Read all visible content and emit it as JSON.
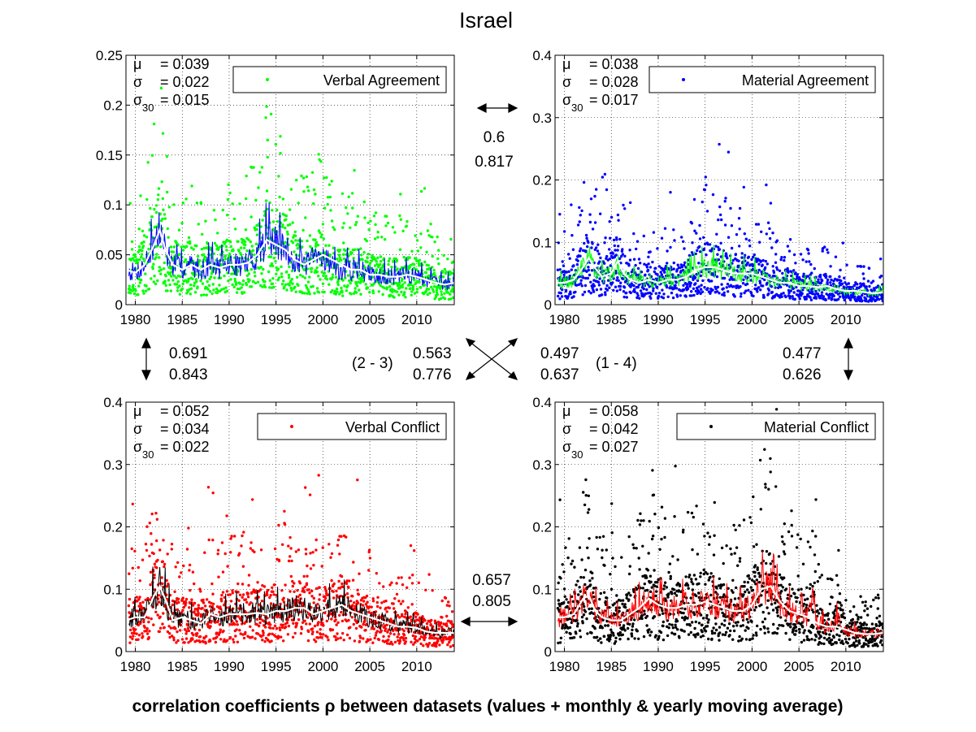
{
  "figure": {
    "title": "Israel",
    "caption": "correlation coefficients ρ between datasets (values + monthly & yearly moving average)"
  },
  "chart_data": [
    {
      "type": "scatter",
      "legend": "Verbal Agreement",
      "legend_position": "top-right",
      "point_color": "#00ff00",
      "monthly_color": "#0000ff",
      "yearly_color": "#ffffff",
      "grid": true,
      "xlim": [
        1979,
        2014
      ],
      "ylim": [
        0,
        0.25
      ],
      "xticks": [
        "1980",
        "1985",
        "1990",
        "1995",
        "2000",
        "2005",
        "2010"
      ],
      "yticks": [
        "0",
        "0.05",
        "0.1",
        "0.15",
        "0.2",
        "0.25"
      ],
      "stats": [
        {
          "sym": "μ",
          "sub": "",
          "val": "= 0.039"
        },
        {
          "sym": "σ",
          "sub": "",
          "val": "= 0.022"
        },
        {
          "sym": "σ",
          "sub": "30",
          "val": "= 0.015"
        }
      ],
      "yearly_avg": [
        [
          1979,
          0.035
        ],
        [
          1980,
          0.032
        ],
        [
          1981,
          0.04
        ],
        [
          1982,
          0.06
        ],
        [
          1982.6,
          0.075
        ],
        [
          1983.2,
          0.055
        ],
        [
          1984,
          0.04
        ],
        [
          1985,
          0.035
        ],
        [
          1986,
          0.04
        ],
        [
          1987,
          0.035
        ],
        [
          1988,
          0.04
        ],
        [
          1989,
          0.037
        ],
        [
          1990,
          0.04
        ],
        [
          1991,
          0.04
        ],
        [
          1992,
          0.042
        ],
        [
          1993,
          0.05
        ],
        [
          1994,
          0.065
        ],
        [
          1995,
          0.06
        ],
        [
          1996,
          0.055
        ],
        [
          1997,
          0.045
        ],
        [
          1998,
          0.04
        ],
        [
          1999,
          0.045
        ],
        [
          2000,
          0.05
        ],
        [
          2001,
          0.045
        ],
        [
          2002,
          0.04
        ],
        [
          2003,
          0.035
        ],
        [
          2004,
          0.035
        ],
        [
          2005,
          0.03
        ],
        [
          2006,
          0.03
        ],
        [
          2007,
          0.028
        ],
        [
          2008,
          0.028
        ],
        [
          2009,
          0.03
        ],
        [
          2010,
          0.028
        ],
        [
          2011,
          0.025
        ],
        [
          2012,
          0.022
        ],
        [
          2013,
          0.02
        ],
        [
          2014,
          0.022
        ]
      ]
    },
    {
      "type": "scatter",
      "legend": "Material Agreement",
      "legend_position": "top-right",
      "point_color": "#0000ff",
      "monthly_color": "#00ff00",
      "yearly_color": "#ffffff",
      "grid": true,
      "xlim": [
        1979,
        2014
      ],
      "ylim": [
        0,
        0.4
      ],
      "xticks": [
        "1980",
        "1985",
        "1990",
        "1995",
        "2000",
        "2005",
        "2010"
      ],
      "yticks": [
        "0",
        "0.1",
        "0.2",
        "0.3",
        "0.4"
      ],
      "stats": [
        {
          "sym": "μ",
          "sub": "",
          "val": "= 0.038"
        },
        {
          "sym": "σ",
          "sub": "",
          "val": "= 0.028"
        },
        {
          "sym": "σ",
          "sub": "30",
          "val": "= 0.017"
        }
      ],
      "yearly_avg": [
        [
          1979,
          0.035
        ],
        [
          1980,
          0.035
        ],
        [
          1981,
          0.04
        ],
        [
          1982,
          0.06
        ],
        [
          1982.6,
          0.075
        ],
        [
          1983.2,
          0.06
        ],
        [
          1984,
          0.045
        ],
        [
          1985,
          0.05
        ],
        [
          1985.7,
          0.07
        ],
        [
          1986.3,
          0.05
        ],
        [
          1987,
          0.04
        ],
        [
          1988,
          0.035
        ],
        [
          1989,
          0.04
        ],
        [
          1990,
          0.035
        ],
        [
          1991,
          0.04
        ],
        [
          1992,
          0.04
        ],
        [
          1993,
          0.045
        ],
        [
          1994,
          0.055
        ],
        [
          1995,
          0.06
        ],
        [
          1996,
          0.06
        ],
        [
          1997,
          0.055
        ],
        [
          1998,
          0.05
        ],
        [
          1999,
          0.05
        ],
        [
          2000,
          0.05
        ],
        [
          2001,
          0.045
        ],
        [
          2002,
          0.04
        ],
        [
          2003,
          0.035
        ],
        [
          2004,
          0.035
        ],
        [
          2005,
          0.03
        ],
        [
          2006,
          0.03
        ],
        [
          2007,
          0.028
        ],
        [
          2008,
          0.03
        ],
        [
          2009,
          0.025
        ],
        [
          2010,
          0.022
        ],
        [
          2011,
          0.022
        ],
        [
          2012,
          0.02
        ],
        [
          2013,
          0.018
        ],
        [
          2014,
          0.02
        ]
      ]
    },
    {
      "type": "scatter",
      "legend": "Verbal Conflict",
      "legend_position": "top-right",
      "point_color": "#ff0000",
      "monthly_color": "#000000",
      "yearly_color": "#ffffff",
      "grid": true,
      "xlim": [
        1979,
        2014
      ],
      "ylim": [
        0,
        0.4
      ],
      "xticks": [
        "1980",
        "1985",
        "1990",
        "1995",
        "2000",
        "2005",
        "2010"
      ],
      "yticks": [
        "0",
        "0.1",
        "0.2",
        "0.3",
        "0.4"
      ],
      "stats": [
        {
          "sym": "μ",
          "sub": "",
          "val": "= 0.052"
        },
        {
          "sym": "σ",
          "sub": "",
          "val": "= 0.034"
        },
        {
          "sym": "σ",
          "sub": "30",
          "val": "= 0.022"
        }
      ],
      "yearly_avg": [
        [
          1979,
          0.05
        ],
        [
          1980,
          0.055
        ],
        [
          1981,
          0.055
        ],
        [
          1982,
          0.09
        ],
        [
          1982.6,
          0.105
        ],
        [
          1983.3,
          0.08
        ],
        [
          1984,
          0.05
        ],
        [
          1985,
          0.055
        ],
        [
          1986,
          0.05
        ],
        [
          1987,
          0.045
        ],
        [
          1988,
          0.06
        ],
        [
          1989,
          0.055
        ],
        [
          1990,
          0.06
        ],
        [
          1991,
          0.06
        ],
        [
          1992,
          0.06
        ],
        [
          1993,
          0.062
        ],
        [
          1994,
          0.06
        ],
        [
          1995,
          0.065
        ],
        [
          1996,
          0.065
        ],
        [
          1997,
          0.07
        ],
        [
          1998,
          0.07
        ],
        [
          1999,
          0.06
        ],
        [
          2000,
          0.065
        ],
        [
          2001,
          0.07
        ],
        [
          2002,
          0.075
        ],
        [
          2003,
          0.065
        ],
        [
          2004,
          0.06
        ],
        [
          2005,
          0.055
        ],
        [
          2006,
          0.05
        ],
        [
          2007,
          0.045
        ],
        [
          2008,
          0.04
        ],
        [
          2009,
          0.04
        ],
        [
          2010,
          0.038
        ],
        [
          2011,
          0.032
        ],
        [
          2012,
          0.03
        ],
        [
          2013,
          0.03
        ],
        [
          2014,
          0.03
        ]
      ]
    },
    {
      "type": "scatter",
      "legend": "Material Conflict",
      "legend_position": "top-right",
      "point_color": "#000000",
      "monthly_color": "#ff0000",
      "yearly_color": "#ffffff",
      "grid": true,
      "xlim": [
        1979,
        2014
      ],
      "ylim": [
        0,
        0.4
      ],
      "xticks": [
        "1980",
        "1985",
        "1990",
        "1995",
        "2000",
        "2005",
        "2010"
      ],
      "yticks": [
        "0",
        "0.1",
        "0.2",
        "0.3",
        "0.4"
      ],
      "stats": [
        {
          "sym": "μ",
          "sub": "",
          "val": "= 0.058"
        },
        {
          "sym": "σ",
          "sub": "",
          "val": "= 0.042"
        },
        {
          "sym": "σ",
          "sub": "30",
          "val": "= 0.027"
        }
      ],
      "yearly_avg": [
        [
          1979,
          0.055
        ],
        [
          1980,
          0.055
        ],
        [
          1981,
          0.06
        ],
        [
          1982,
          0.085
        ],
        [
          1982.6,
          0.09
        ],
        [
          1983.3,
          0.065
        ],
        [
          1984,
          0.055
        ],
        [
          1985,
          0.05
        ],
        [
          1986,
          0.05
        ],
        [
          1987,
          0.06
        ],
        [
          1988,
          0.07
        ],
        [
          1989,
          0.085
        ],
        [
          1990,
          0.075
        ],
        [
          1991,
          0.07
        ],
        [
          1992,
          0.07
        ],
        [
          1993,
          0.075
        ],
        [
          1994,
          0.075
        ],
        [
          1995,
          0.08
        ],
        [
          1996,
          0.075
        ],
        [
          1997,
          0.07
        ],
        [
          1998,
          0.065
        ],
        [
          1999,
          0.065
        ],
        [
          2000,
          0.075
        ],
        [
          2001,
          0.1
        ],
        [
          2002,
          0.105
        ],
        [
          2003,
          0.08
        ],
        [
          2004,
          0.065
        ],
        [
          2005,
          0.06
        ],
        [
          2006,
          0.055
        ],
        [
          2007,
          0.045
        ],
        [
          2008,
          0.04
        ],
        [
          2009,
          0.04
        ],
        [
          2010,
          0.035
        ],
        [
          2011,
          0.03
        ],
        [
          2012,
          0.028
        ],
        [
          2013,
          0.028
        ],
        [
          2014,
          0.03
        ]
      ]
    }
  ],
  "correlations": {
    "top": {
      "a": "0.6",
      "b": "0.817"
    },
    "left": {
      "a": "0.691",
      "b": "0.843"
    },
    "right": {
      "a": "0.477",
      "b": "0.626"
    },
    "diag_23": {
      "label": "(2 - 3)",
      "a": "0.563",
      "b": "0.776"
    },
    "diag_14": {
      "label": "(1 - 4)",
      "a": "0.497",
      "b": "0.637"
    },
    "bottom": {
      "a": "0.657",
      "b": "0.805"
    }
  }
}
